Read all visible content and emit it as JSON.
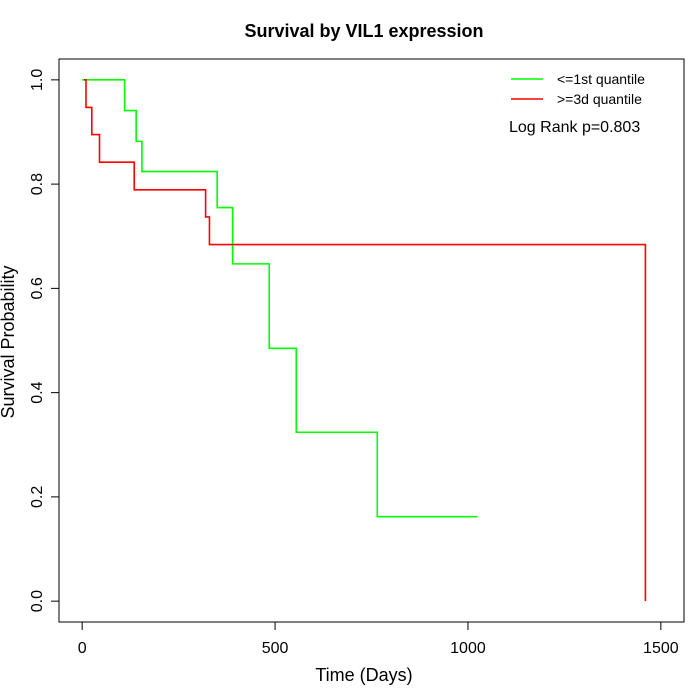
{
  "chart_data": {
    "type": "line",
    "step": true,
    "title": "Survival by VIL1 expression",
    "xlabel": "Time (Days)",
    "ylabel": "Survival Probability",
    "xlim": [
      -60,
      1560
    ],
    "ylim": [
      -0.04,
      1.04
    ],
    "xticks": [
      0,
      500,
      1000,
      1500
    ],
    "yticks": [
      0.0,
      0.2,
      0.4,
      0.6,
      0.8,
      1.0
    ],
    "xtick_labels": [
      "0",
      "500",
      "1000",
      "1500"
    ],
    "ytick_labels": [
      "0.0",
      "0.2",
      "0.4",
      "0.6",
      "0.8",
      "1.0"
    ],
    "grid": false,
    "legend_position": "top-right",
    "annotation": "Log Rank p=0.803",
    "series": [
      {
        "name": "<=1st quantile",
        "color": "#00ff00",
        "x": [
          0,
          110,
          140,
          155,
          350,
          390,
          485,
          555,
          765,
          1025
        ],
        "y": [
          1.0,
          0.941,
          0.882,
          0.824,
          0.755,
          0.647,
          0.485,
          0.324,
          0.162,
          0.162
        ]
      },
      {
        "name": ">=3d quantile",
        "color": "#ff0000",
        "x": [
          5,
          10,
          25,
          45,
          135,
          320,
          330,
          1460,
          1460
        ],
        "y": [
          1.0,
          0.947,
          0.895,
          0.842,
          0.789,
          0.737,
          0.684,
          0.684,
          0.0
        ]
      }
    ]
  }
}
